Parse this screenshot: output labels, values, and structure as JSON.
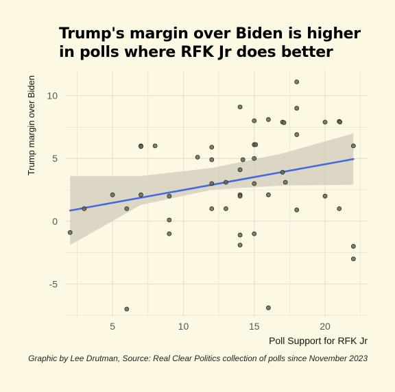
{
  "title_lines": [
    "Trump's margin over Biden is higher",
    "in polls where RFK Jr does better"
  ],
  "caption": "Graphic by Lee Drutman, Source: Real Clear Politics collection of polls since November 2023",
  "colors": {
    "background": "#fdf8e4",
    "grid": "#e2dccb",
    "point_fill": "#6b6650",
    "point_stroke": "#2a2a22",
    "trend_line": "#4169e1",
    "confidence_band": "#d6d0c0"
  },
  "chart_data": {
    "type": "scatter",
    "xlabel": "Poll Support for RFK Jr",
    "ylabel": "Trump margin over Biden",
    "xlim": [
      1.7,
      23.0
    ],
    "ylim": [
      -7.6,
      12.0
    ],
    "x_ticks": [
      5,
      10,
      15,
      20
    ],
    "y_ticks": [
      -5,
      0,
      5,
      10
    ],
    "x_tick_labels": [
      "5",
      "10",
      "15",
      "20"
    ],
    "y_tick_labels": [
      "-5",
      "0",
      "5",
      "10"
    ],
    "grid": true,
    "legend": "none",
    "points": [
      [
        2,
        -0.9
      ],
      [
        3,
        1.0
      ],
      [
        5,
        2.1
      ],
      [
        6,
        1.0
      ],
      [
        6,
        -7.0
      ],
      [
        7,
        6.0
      ],
      [
        7,
        5.95
      ],
      [
        7,
        2.1
      ],
      [
        8,
        6.0
      ],
      [
        9,
        2.0
      ],
      [
        9,
        0.1
      ],
      [
        9,
        -1.0
      ],
      [
        11,
        5.1
      ],
      [
        12,
        5.9
      ],
      [
        12,
        4.9
      ],
      [
        12,
        3.0
      ],
      [
        12,
        1.0
      ],
      [
        13,
        3.1
      ],
      [
        13,
        1.0
      ],
      [
        14,
        9.1
      ],
      [
        14,
        4.1
      ],
      [
        14,
        2.1
      ],
      [
        14,
        2.0
      ],
      [
        14,
        -1.1
      ],
      [
        14,
        -1.9
      ],
      [
        14.2,
        4.9
      ],
      [
        15,
        8.0
      ],
      [
        15,
        6.1
      ],
      [
        15.1,
        6.1
      ],
      [
        15,
        5.0
      ],
      [
        15,
        3.0
      ],
      [
        15,
        -1.0
      ],
      [
        16,
        8.1
      ],
      [
        16,
        2.1
      ],
      [
        16,
        -6.9
      ],
      [
        17,
        7.9
      ],
      [
        17.1,
        7.85
      ],
      [
        17,
        3.9
      ],
      [
        17.2,
        3.1
      ],
      [
        18,
        11.1
      ],
      [
        18,
        9.0
      ],
      [
        18,
        6.9
      ],
      [
        18,
        0.9
      ],
      [
        20,
        7.9
      ],
      [
        20,
        2.0
      ],
      [
        21,
        7.95
      ],
      [
        21.05,
        7.9
      ],
      [
        21,
        1.0
      ],
      [
        22,
        6.0
      ],
      [
        22,
        -2.0
      ],
      [
        22,
        -3.0
      ]
    ],
    "trend": {
      "x": [
        2,
        22
      ],
      "y": [
        0.85,
        4.95
      ]
    },
    "confidence_band": {
      "x": [
        2,
        7,
        12,
        17,
        22
      ],
      "lower": [
        -1.9,
        1.3,
        2.5,
        2.85,
        2.9
      ],
      "upper": [
        3.6,
        3.6,
        4.25,
        5.4,
        7.0
      ]
    }
  }
}
